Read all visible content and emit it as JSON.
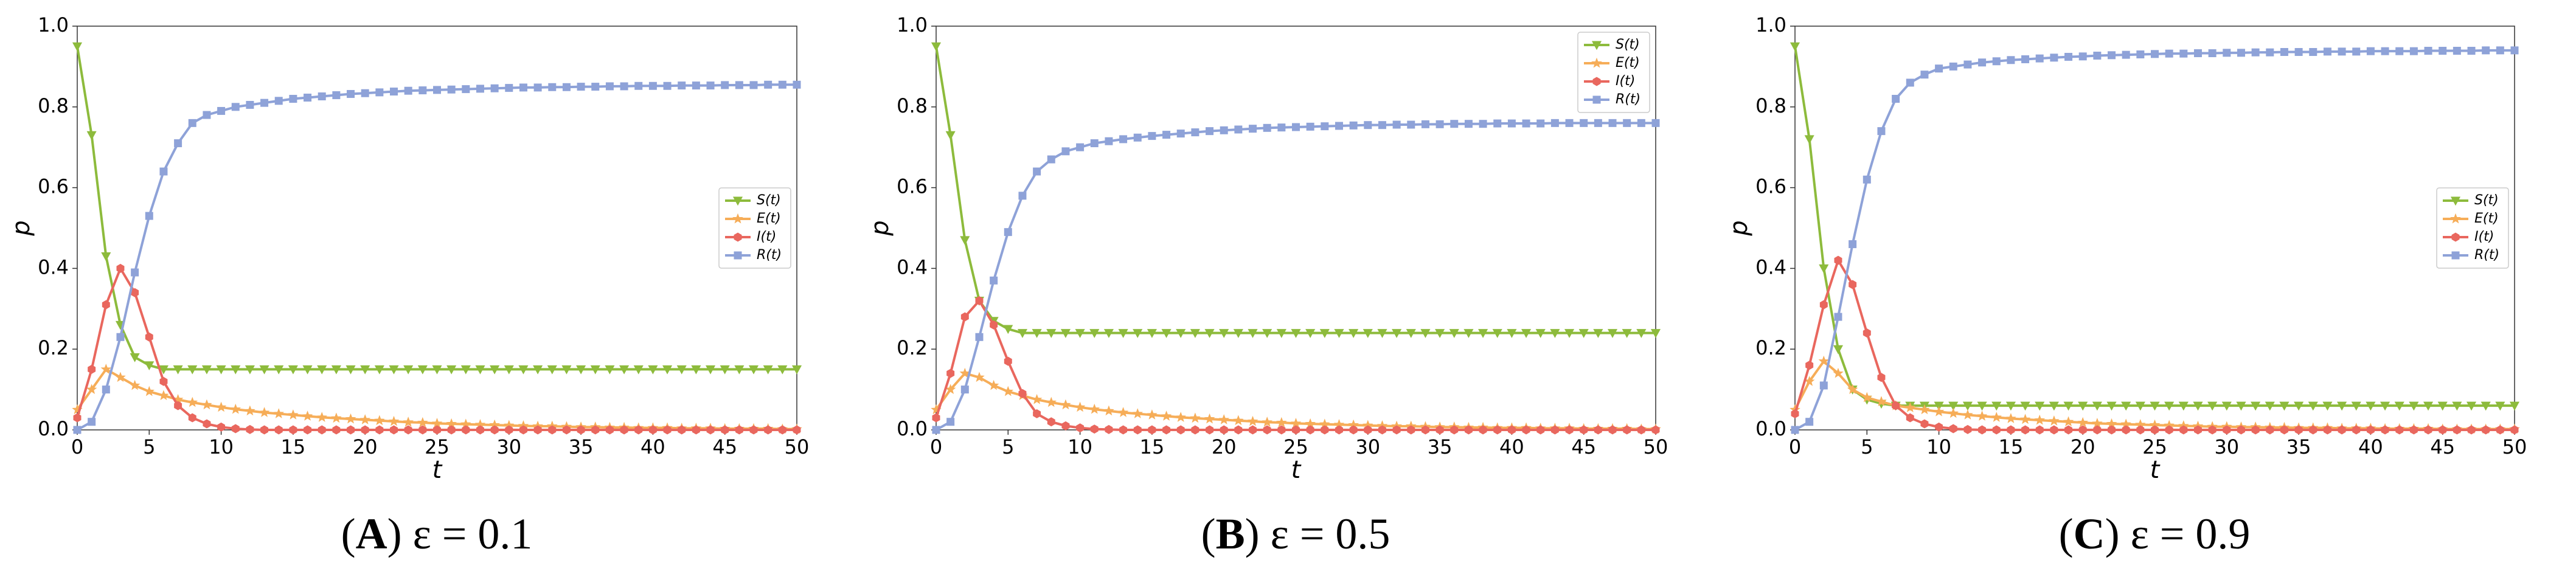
{
  "chart_data": [
    {
      "type": "line",
      "caption_parts": [
        "(",
        "A",
        ")",
        " ε = 0.1"
      ],
      "xlabel": "t",
      "ylabel": "p",
      "xlim": [
        0,
        50
      ],
      "ylim": [
        0,
        1
      ],
      "xticks": [
        0,
        5,
        10,
        15,
        20,
        25,
        30,
        35,
        40,
        45,
        50
      ],
      "yticks": [
        {
          "value": 0,
          "label": "0.0"
        },
        {
          "value": 0.2,
          "label": "0.2"
        },
        {
          "value": 0.4,
          "label": "0.4"
        },
        {
          "value": 0.6,
          "label": "0.6"
        },
        {
          "value": 0.8,
          "label": "0.8"
        },
        {
          "value": 1,
          "label": "1.0"
        }
      ],
      "legend_loc": "center right",
      "x": [
        0,
        1,
        2,
        3,
        4,
        5,
        6,
        7,
        8,
        9,
        10,
        11,
        12,
        13,
        14,
        15,
        16,
        17,
        18,
        19,
        20,
        21,
        22,
        23,
        24,
        25,
        26,
        27,
        28,
        29,
        30,
        31,
        32,
        33,
        34,
        35,
        36,
        37,
        38,
        39,
        40,
        41,
        42,
        43,
        44,
        45,
        46,
        47,
        48,
        49,
        50
      ],
      "series": [
        {
          "name": "S(t)",
          "color": "#8dbb3c",
          "marker": "triangle-down",
          "values": [
            0.95,
            0.73,
            0.43,
            0.26,
            0.18,
            0.16,
            0.15,
            0.15,
            0.15,
            0.15,
            0.15,
            0.15,
            0.15,
            0.15,
            0.15,
            0.15,
            0.15,
            0.15,
            0.15,
            0.15,
            0.15,
            0.15,
            0.15,
            0.15,
            0.15,
            0.15,
            0.15,
            0.15,
            0.15,
            0.15,
            0.15,
            0.15,
            0.15,
            0.15,
            0.15,
            0.15,
            0.15,
            0.15,
            0.15,
            0.15,
            0.15,
            0.15,
            0.15,
            0.15,
            0.15,
            0.15,
            0.15,
            0.15,
            0.15,
            0.15,
            0.15
          ]
        },
        {
          "name": "E(t)",
          "color": "#f6ad58",
          "marker": "star",
          "values": [
            0.05,
            0.1,
            0.15,
            0.13,
            0.11,
            0.095,
            0.085,
            0.075,
            0.068,
            0.062,
            0.056,
            0.051,
            0.047,
            0.043,
            0.04,
            0.037,
            0.034,
            0.031,
            0.029,
            0.027,
            0.025,
            0.023,
            0.021,
            0.019,
            0.018,
            0.016,
            0.015,
            0.014,
            0.013,
            0.012,
            0.011,
            0.01,
            0.009,
            0.009,
            0.008,
            0.007,
            0.007,
            0.006,
            0.006,
            0.005,
            0.005,
            0.005,
            0.004,
            0.004,
            0.004,
            0.003,
            0.003,
            0.003,
            0.003,
            0.002,
            0.002
          ]
        },
        {
          "name": "I(t)",
          "color": "#e9675e",
          "marker": "hexagon",
          "values": [
            0.03,
            0.15,
            0.31,
            0.4,
            0.34,
            0.23,
            0.12,
            0.06,
            0.03,
            0.015,
            0.007,
            0.003,
            0.001,
            0,
            0,
            0,
            0,
            0,
            0,
            0,
            0,
            0,
            0,
            0,
            0,
            0,
            0,
            0,
            0,
            0,
            0,
            0,
            0,
            0,
            0,
            0,
            0,
            0,
            0,
            0,
            0,
            0,
            0,
            0,
            0,
            0,
            0,
            0,
            0,
            0,
            0
          ]
        },
        {
          "name": "R(t)",
          "color": "#8ea2d8",
          "marker": "square",
          "values": [
            0,
            0.02,
            0.1,
            0.23,
            0.39,
            0.53,
            0.64,
            0.71,
            0.76,
            0.78,
            0.79,
            0.8,
            0.805,
            0.81,
            0.815,
            0.82,
            0.823,
            0.826,
            0.829,
            0.832,
            0.834,
            0.836,
            0.838,
            0.84,
            0.841,
            0.842,
            0.843,
            0.844,
            0.845,
            0.846,
            0.847,
            0.848,
            0.848,
            0.849,
            0.849,
            0.85,
            0.85,
            0.851,
            0.851,
            0.852,
            0.852,
            0.852,
            0.853,
            0.853,
            0.853,
            0.854,
            0.854,
            0.854,
            0.855,
            0.855,
            0.855
          ]
        }
      ]
    },
    {
      "type": "line",
      "caption_parts": [
        "(",
        "B",
        ")",
        " ε = 0.5"
      ],
      "xlabel": "t",
      "ylabel": "p",
      "xlim": [
        0,
        50
      ],
      "ylim": [
        0,
        1
      ],
      "xticks": [
        0,
        5,
        10,
        15,
        20,
        25,
        30,
        35,
        40,
        45,
        50
      ],
      "yticks": [
        {
          "value": 0,
          "label": "0.0"
        },
        {
          "value": 0.2,
          "label": "0.2"
        },
        {
          "value": 0.4,
          "label": "0.4"
        },
        {
          "value": 0.6,
          "label": "0.6"
        },
        {
          "value": 0.8,
          "label": "0.8"
        },
        {
          "value": 1,
          "label": "1.0"
        }
      ],
      "legend_loc": "upper right",
      "x": [
        0,
        1,
        2,
        3,
        4,
        5,
        6,
        7,
        8,
        9,
        10,
        11,
        12,
        13,
        14,
        15,
        16,
        17,
        18,
        19,
        20,
        21,
        22,
        23,
        24,
        25,
        26,
        27,
        28,
        29,
        30,
        31,
        32,
        33,
        34,
        35,
        36,
        37,
        38,
        39,
        40,
        41,
        42,
        43,
        44,
        45,
        46,
        47,
        48,
        49,
        50
      ],
      "series": [
        {
          "name": "S(t)",
          "color": "#8dbb3c",
          "marker": "triangle-down",
          "values": [
            0.95,
            0.73,
            0.47,
            0.32,
            0.27,
            0.25,
            0.24,
            0.24,
            0.24,
            0.24,
            0.24,
            0.24,
            0.24,
            0.24,
            0.24,
            0.24,
            0.24,
            0.24,
            0.24,
            0.24,
            0.24,
            0.24,
            0.24,
            0.24,
            0.24,
            0.24,
            0.24,
            0.24,
            0.24,
            0.24,
            0.24,
            0.24,
            0.24,
            0.24,
            0.24,
            0.24,
            0.24,
            0.24,
            0.24,
            0.24,
            0.24,
            0.24,
            0.24,
            0.24,
            0.24,
            0.24,
            0.24,
            0.24,
            0.24,
            0.24,
            0.24
          ]
        },
        {
          "name": "E(t)",
          "color": "#f6ad58",
          "marker": "star",
          "values": [
            0.05,
            0.1,
            0.14,
            0.13,
            0.11,
            0.095,
            0.085,
            0.075,
            0.068,
            0.062,
            0.056,
            0.051,
            0.047,
            0.043,
            0.04,
            0.037,
            0.034,
            0.031,
            0.029,
            0.027,
            0.025,
            0.023,
            0.021,
            0.019,
            0.018,
            0.016,
            0.015,
            0.014,
            0.013,
            0.012,
            0.011,
            0.01,
            0.009,
            0.009,
            0.008,
            0.007,
            0.007,
            0.006,
            0.006,
            0.005,
            0.005,
            0.005,
            0.004,
            0.004,
            0.004,
            0.003,
            0.003,
            0.003,
            0.003,
            0.002,
            0.002
          ]
        },
        {
          "name": "I(t)",
          "color": "#e9675e",
          "marker": "hexagon",
          "values": [
            0.03,
            0.14,
            0.28,
            0.32,
            0.26,
            0.17,
            0.09,
            0.04,
            0.02,
            0.01,
            0.005,
            0.002,
            0.001,
            0,
            0,
            0,
            0,
            0,
            0,
            0,
            0,
            0,
            0,
            0,
            0,
            0,
            0,
            0,
            0,
            0,
            0,
            0,
            0,
            0,
            0,
            0,
            0,
            0,
            0,
            0,
            0,
            0,
            0,
            0,
            0,
            0,
            0,
            0,
            0,
            0,
            0
          ]
        },
        {
          "name": "R(t)",
          "color": "#8ea2d8",
          "marker": "square",
          "values": [
            0,
            0.02,
            0.1,
            0.23,
            0.37,
            0.49,
            0.58,
            0.64,
            0.67,
            0.69,
            0.7,
            0.71,
            0.715,
            0.72,
            0.724,
            0.728,
            0.731,
            0.734,
            0.737,
            0.74,
            0.742,
            0.744,
            0.746,
            0.748,
            0.749,
            0.75,
            0.751,
            0.752,
            0.753,
            0.754,
            0.755,
            0.755,
            0.756,
            0.756,
            0.757,
            0.757,
            0.758,
            0.758,
            0.758,
            0.759,
            0.759,
            0.759,
            0.759,
            0.76,
            0.76,
            0.76,
            0.76,
            0.76,
            0.76,
            0.76,
            0.76
          ]
        }
      ]
    },
    {
      "type": "line",
      "caption_parts": [
        "(",
        "C",
        ")",
        " ε = 0.9"
      ],
      "xlabel": "t",
      "ylabel": "p",
      "xlim": [
        0,
        50
      ],
      "ylim": [
        0,
        1
      ],
      "xticks": [
        0,
        5,
        10,
        15,
        20,
        25,
        30,
        35,
        40,
        45,
        50
      ],
      "yticks": [
        {
          "value": 0,
          "label": "0.0"
        },
        {
          "value": 0.2,
          "label": "0.2"
        },
        {
          "value": 0.4,
          "label": "0.4"
        },
        {
          "value": 0.6,
          "label": "0.6"
        },
        {
          "value": 0.8,
          "label": "0.8"
        },
        {
          "value": 1,
          "label": "1.0"
        }
      ],
      "legend_loc": "center right",
      "x": [
        0,
        1,
        2,
        3,
        4,
        5,
        6,
        7,
        8,
        9,
        10,
        11,
        12,
        13,
        14,
        15,
        16,
        17,
        18,
        19,
        20,
        21,
        22,
        23,
        24,
        25,
        26,
        27,
        28,
        29,
        30,
        31,
        32,
        33,
        34,
        35,
        36,
        37,
        38,
        39,
        40,
        41,
        42,
        43,
        44,
        45,
        46,
        47,
        48,
        49,
        50
      ],
      "series": [
        {
          "name": "S(t)",
          "color": "#8dbb3c",
          "marker": "triangle-down",
          "values": [
            0.95,
            0.72,
            0.4,
            0.2,
            0.1,
            0.075,
            0.065,
            0.06,
            0.06,
            0.06,
            0.06,
            0.06,
            0.06,
            0.06,
            0.06,
            0.06,
            0.06,
            0.06,
            0.06,
            0.06,
            0.06,
            0.06,
            0.06,
            0.06,
            0.06,
            0.06,
            0.06,
            0.06,
            0.06,
            0.06,
            0.06,
            0.06,
            0.06,
            0.06,
            0.06,
            0.06,
            0.06,
            0.06,
            0.06,
            0.06,
            0.06,
            0.06,
            0.06,
            0.06,
            0.06,
            0.06,
            0.06,
            0.06,
            0.06,
            0.06,
            0.06
          ]
        },
        {
          "name": "E(t)",
          "color": "#f6ad58",
          "marker": "star",
          "values": [
            0.05,
            0.12,
            0.17,
            0.14,
            0.1,
            0.08,
            0.07,
            0.06,
            0.055,
            0.05,
            0.045,
            0.041,
            0.037,
            0.034,
            0.031,
            0.028,
            0.026,
            0.024,
            0.022,
            0.02,
            0.018,
            0.016,
            0.015,
            0.014,
            0.013,
            0.012,
            0.011,
            0.01,
            0.009,
            0.008,
            0.008,
            0.007,
            0.007,
            0.006,
            0.006,
            0.005,
            0.005,
            0.005,
            0.004,
            0.004,
            0.004,
            0.003,
            0.003,
            0.003,
            0.003,
            0.002,
            0.002,
            0.002,
            0.002,
            0.002,
            0.002
          ]
        },
        {
          "name": "I(t)",
          "color": "#e9675e",
          "marker": "hexagon",
          "values": [
            0.04,
            0.16,
            0.31,
            0.42,
            0.36,
            0.24,
            0.13,
            0.06,
            0.03,
            0.015,
            0.007,
            0.003,
            0.001,
            0,
            0,
            0,
            0,
            0,
            0,
            0,
            0,
            0,
            0,
            0,
            0,
            0,
            0,
            0,
            0,
            0,
            0,
            0,
            0,
            0,
            0,
            0,
            0,
            0,
            0,
            0,
            0,
            0,
            0,
            0,
            0,
            0,
            0,
            0,
            0,
            0,
            0
          ]
        },
        {
          "name": "R(t)",
          "color": "#8ea2d8",
          "marker": "square",
          "values": [
            0,
            0.02,
            0.11,
            0.28,
            0.46,
            0.62,
            0.74,
            0.82,
            0.86,
            0.88,
            0.895,
            0.9,
            0.905,
            0.91,
            0.913,
            0.916,
            0.918,
            0.92,
            0.922,
            0.924,
            0.925,
            0.927,
            0.928,
            0.929,
            0.93,
            0.931,
            0.932,
            0.932,
            0.933,
            0.933,
            0.934,
            0.934,
            0.935,
            0.935,
            0.936,
            0.936,
            0.936,
            0.937,
            0.937,
            0.937,
            0.938,
            0.938,
            0.938,
            0.938,
            0.939,
            0.939,
            0.939,
            0.939,
            0.94,
            0.94,
            0.94
          ]
        }
      ]
    }
  ]
}
